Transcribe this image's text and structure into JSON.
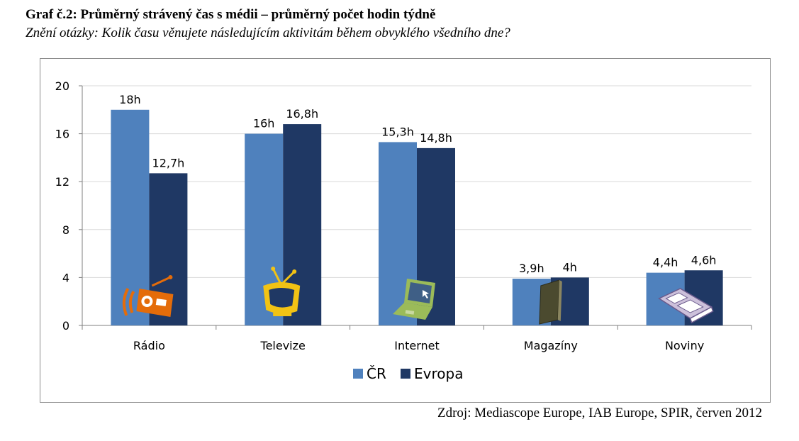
{
  "header": {
    "title": "Graf č.2: Průměrný strávený čas s médii – průměrný počet hodin týdně",
    "subtitle": "Znění otázky: Kolik času věnujete následujícím aktivitám během obvyklého všedního dne?"
  },
  "footer": {
    "source": "Zdroj: Mediascope Europe, IAB Europe, SPIR, červen 2012"
  },
  "colors": {
    "cr": "#4f81bd",
    "evropa": "#1f3864",
    "grid": "#d9d9d9",
    "axis": "#7f7f7f",
    "icon_radio": "#e46c0a",
    "icon_tv": "#f2c314",
    "icon_internet": "#9bbb59",
    "icon_magazine": "#4b4a2f",
    "icon_newspaper": "#ccc0da"
  },
  "chart_data": {
    "type": "bar",
    "categories": [
      "Rádio",
      "Televize",
      "Internet",
      "Magazíny",
      "Noviny"
    ],
    "category_icons": [
      "radio-icon",
      "tv-icon",
      "laptop-icon",
      "magazine-icon",
      "newspaper-icon"
    ],
    "series": [
      {
        "name": "ČR",
        "values": [
          18,
          16,
          15.3,
          3.9,
          4.4
        ],
        "labels": [
          "18h",
          "16h",
          "15,3h",
          "3,9h",
          "4,4h"
        ]
      },
      {
        "name": "Evropa",
        "values": [
          12.7,
          16.8,
          14.8,
          4,
          4.6
        ],
        "labels": [
          "12,7h",
          "16,8h",
          "14,8h",
          "4h",
          "4,6h"
        ]
      }
    ],
    "ylim": [
      0,
      20
    ],
    "yticks": [
      0,
      4,
      8,
      12,
      16,
      20
    ],
    "xlabel": "",
    "ylabel": "",
    "grid": true,
    "legend_position": "bottom"
  }
}
